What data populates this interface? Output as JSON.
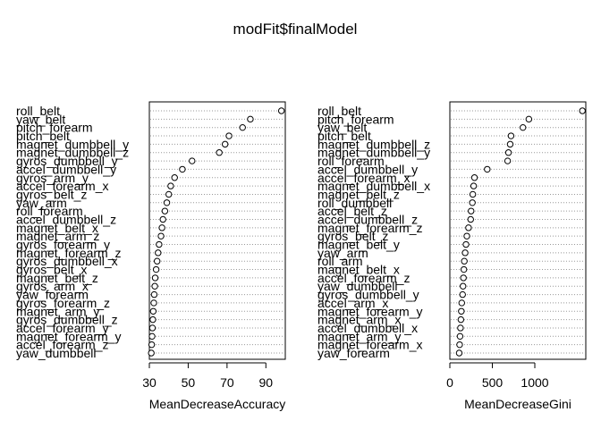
{
  "title": "modFit$finalModel",
  "chart_data": [
    {
      "type": "dotchart",
      "xlabel": "MeanDecreaseAccuracy",
      "xlim": [
        30,
        100
      ],
      "xticks": [
        30,
        50,
        70,
        90
      ],
      "grid": "dotted horizontal",
      "labels": [
        "roll_belt",
        "yaw_belt",
        "pitch_forearm",
        "pitch_belt",
        "magnet_dumbbell_y",
        "magnet_dumbbell_z",
        "gyros_dumbbell_y",
        "accel_dumbbell_y",
        "gyros_arm_y",
        "accel_forearm_x",
        "gyros_belt_z",
        "yaw_arm",
        "roll_forearm",
        "accel_dumbbell_z",
        "magnet_belt_x",
        "magnet_arm_z",
        "gyros_forearm_y",
        "magnet_forearm_z",
        "gyros_dumbbell_x",
        "gyros_belt_x",
        "magnet_belt_z",
        "gyros_arm_x",
        "yaw_forearm",
        "gyros_forearm_z",
        "magnet_arm_y",
        "gyros_dumbbell_z",
        "accel_forearm_y",
        "magnet_forearm_y",
        "accel_forearm_z",
        "yaw_dumbbell"
      ],
      "values": [
        98,
        82,
        78,
        71,
        69,
        66,
        52,
        47,
        43,
        41,
        40,
        39,
        38,
        37,
        36.5,
        36,
        35,
        34.5,
        34,
        33.5,
        33,
        32.8,
        32.5,
        32.3,
        32,
        31.8,
        31.6,
        31.4,
        31.2,
        31
      ]
    },
    {
      "type": "dotchart",
      "xlabel": "MeanDecreaseGini",
      "xlim": [
        0,
        1600
      ],
      "xticks": [
        0,
        500,
        1000
      ],
      "grid": "dotted horizontal",
      "labels": [
        "roll_belt",
        "pitch_forearm",
        "yaw_belt",
        "pitch_belt",
        "magnet_dumbbell_z",
        "magnet_dumbbell_y",
        "roll_forearm",
        "accel_dumbbell_y",
        "accel_forearm_x",
        "magnet_dumbbell_x",
        "magnet_belt_z",
        "roll_dumbbell",
        "accel_belt_z",
        "accel_dumbbell_z",
        "magnet_forearm_z",
        "gyros_belt_z",
        "magnet_belt_y",
        "yaw_arm",
        "roll_arm",
        "magnet_belt_x",
        "accel_forearm_z",
        "yaw_dumbbell",
        "gyros_dumbbell_y",
        "accel_arm_x",
        "magnet_forearm_y",
        "magnet_arm_x",
        "accel_dumbbell_x",
        "magnet_arm_y",
        "magnet_forearm_x",
        "yaw_forearm"
      ],
      "values": [
        1560,
        930,
        860,
        720,
        710,
        690,
        680,
        440,
        290,
        280,
        270,
        265,
        250,
        245,
        220,
        200,
        190,
        180,
        170,
        165,
        160,
        155,
        150,
        140,
        135,
        130,
        125,
        120,
        115,
        110
      ]
    }
  ]
}
